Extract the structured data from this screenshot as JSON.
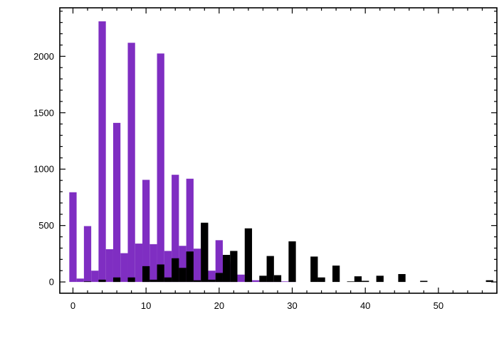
{
  "chart_data": {
    "type": "bar",
    "title": "",
    "xlabel": "",
    "ylabel": "",
    "xlim": [
      -1.8,
      58.0
    ],
    "ylim": [
      -100,
      2430
    ],
    "x_ticks": [
      0,
      10,
      20,
      30,
      40,
      50
    ],
    "y_ticks": [
      0,
      500,
      1000,
      1500,
      2000
    ],
    "x_tick_labels": [
      "0",
      "10",
      "20",
      "30",
      "40",
      "50"
    ],
    "y_tick_labels": [
      "0",
      "500",
      "1000",
      "1500",
      "2000"
    ],
    "bin_width": 1,
    "grid": false,
    "legend": "none",
    "series": [
      {
        "color": "#7f2ec2",
        "x": [
          0,
          1,
          2,
          3,
          4,
          5,
          6,
          7,
          8,
          9,
          10,
          11,
          12,
          13,
          14,
          15,
          16,
          17,
          18,
          19,
          20,
          21,
          22,
          23,
          24,
          25,
          26,
          27,
          28,
          29,
          30
        ],
        "values": [
          795,
          30,
          495,
          100,
          2310,
          290,
          1410,
          255,
          2120,
          340,
          905,
          335,
          2025,
          275,
          950,
          320,
          915,
          295,
          515,
          100,
          370,
          180,
          160,
          65,
          25,
          15,
          10,
          5,
          5,
          5,
          3
        ]
      },
      {
        "color": "#000000",
        "x": [
          2,
          4,
          6,
          8,
          10,
          11,
          12,
          13,
          14,
          15,
          16,
          17,
          18,
          19,
          20,
          21,
          22,
          24,
          26,
          27,
          28,
          30,
          33,
          34,
          36,
          38,
          39,
          40,
          42,
          45,
          48,
          57
        ],
        "values": [
          5,
          20,
          40,
          40,
          140,
          20,
          155,
          40,
          210,
          125,
          270,
          15,
          525,
          20,
          80,
          240,
          275,
          475,
          55,
          230,
          60,
          360,
          225,
          40,
          145,
          5,
          50,
          10,
          55,
          70,
          10,
          15
        ]
      }
    ]
  }
}
